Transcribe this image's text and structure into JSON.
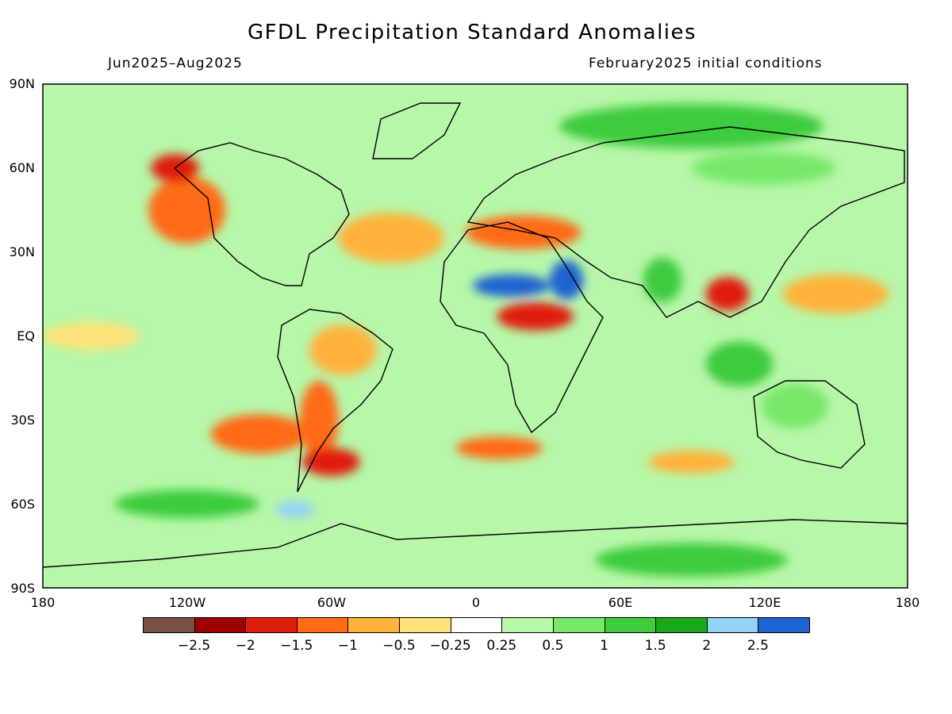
{
  "header": {
    "title": "GFDL Precipitation Standard Anomalies",
    "period": "Jun2025–Aug2025",
    "init": "February2025 initial conditions"
  },
  "axes": {
    "lat_labels": [
      "90N",
      "60N",
      "30N",
      "EQ",
      "30S",
      "60S",
      "90S"
    ],
    "lon_labels": [
      "180",
      "120W",
      "60W",
      "0",
      "60E",
      "120E",
      "180"
    ]
  },
  "colorbar": {
    "colors": [
      "#7a5045",
      "#a00000",
      "#e01e10",
      "#ff6a14",
      "#ffb23a",
      "#ffe27a",
      "#ffffff",
      "#b6f7a8",
      "#78e86a",
      "#3ccc3c",
      "#1aa81a",
      "#94d2f8",
      "#1f63d0"
    ],
    "tick_labels": [
      "−2.5",
      "−2",
      "−1.5",
      "−1",
      "−0.5",
      "−0.25",
      "0.25",
      "0.5",
      "1",
      "1.5",
      "2",
      "2.5"
    ]
  },
  "regions": [
    {
      "name": "west-us",
      "lon": -120,
      "lat": 45,
      "rx": 16,
      "ry": 12,
      "color": "#ff6a14"
    },
    {
      "name": "alaska-west-canada",
      "lon": -125,
      "lat": 60,
      "rx": 10,
      "ry": 5,
      "color": "#e01e10"
    },
    {
      "name": "north-atlantic",
      "lon": -35,
      "lat": 35,
      "rx": 22,
      "ry": 9,
      "color": "#ffb23a"
    },
    {
      "name": "mediterranean",
      "lon": 20,
      "lat": 37,
      "rx": 24,
      "ry": 6,
      "color": "#ff6a14"
    },
    {
      "name": "north-africa-wet",
      "lon": 15,
      "lat": 18,
      "rx": 16,
      "ry": 4,
      "color": "#1f63d0"
    },
    {
      "name": "arabian-wet",
      "lon": 38,
      "lat": 20,
      "rx": 7,
      "ry": 7,
      "color": "#1f63d0"
    },
    {
      "name": "central-africa-dry",
      "lon": 25,
      "lat": 7,
      "rx": 16,
      "ry": 5,
      "color": "#e01e10"
    },
    {
      "name": "amazon-dry",
      "lon": -55,
      "lat": -5,
      "rx": 14,
      "ry": 9,
      "color": "#ffb23a"
    },
    {
      "name": "south-america-dry",
      "lon": -65,
      "lat": -30,
      "rx": 8,
      "ry": 14,
      "color": "#ff6a14"
    },
    {
      "name": "argentina-dry",
      "lon": -60,
      "lat": -45,
      "rx": 12,
      "ry": 5,
      "color": "#e01e10"
    },
    {
      "name": "south-pacific-dry",
      "lon": -90,
      "lat": -35,
      "rx": 20,
      "ry": 7,
      "color": "#ff6a14"
    },
    {
      "name": "south-atlantic-dry",
      "lon": 10,
      "lat": -40,
      "rx": 18,
      "ry": 4,
      "color": "#ff6a14"
    },
    {
      "name": "south-indian-dry",
      "lon": 90,
      "lat": -45,
      "rx": 18,
      "ry": 4,
      "color": "#ffb23a"
    },
    {
      "name": "southeast-asia-dry",
      "lon": 105,
      "lat": 15,
      "rx": 9,
      "ry": 6,
      "color": "#e01e10"
    },
    {
      "name": "west-pacific-dry",
      "lon": 150,
      "lat": 15,
      "rx": 22,
      "ry": 7,
      "color": "#ffb23a"
    },
    {
      "name": "east-pacific-dry",
      "lon": -160,
      "lat": 0,
      "rx": 20,
      "ry": 5,
      "color": "#ffe27a"
    },
    {
      "name": "indonesia-wet",
      "lon": 110,
      "lat": -10,
      "rx": 14,
      "ry": 8,
      "color": "#3ccc3c"
    },
    {
      "name": "australia-wet",
      "lon": 133,
      "lat": -25,
      "rx": 14,
      "ry": 8,
      "color": "#78e86a"
    },
    {
      "name": "southern-ocean-wet",
      "lon": -120,
      "lat": -60,
      "rx": 30,
      "ry": 5,
      "color": "#3ccc3c"
    },
    {
      "name": "drake-wet",
      "lon": -75,
      "lat": -62,
      "rx": 8,
      "ry": 3,
      "color": "#94d2f8"
    },
    {
      "name": "antarctica-wet",
      "lon": 90,
      "lat": -80,
      "rx": 40,
      "ry": 6,
      "color": "#3ccc3c"
    },
    {
      "name": "arctic-wet",
      "lon": 90,
      "lat": 75,
      "rx": 55,
      "ry": 8,
      "color": "#3ccc3c"
    },
    {
      "name": "siberia-wet",
      "lon": 120,
      "lat": 60,
      "rx": 30,
      "ry": 6,
      "color": "#78e86a"
    },
    {
      "name": "india-wet",
      "lon": 78,
      "lat": 20,
      "rx": 8,
      "ry": 8,
      "color": "#3ccc3c"
    }
  ]
}
